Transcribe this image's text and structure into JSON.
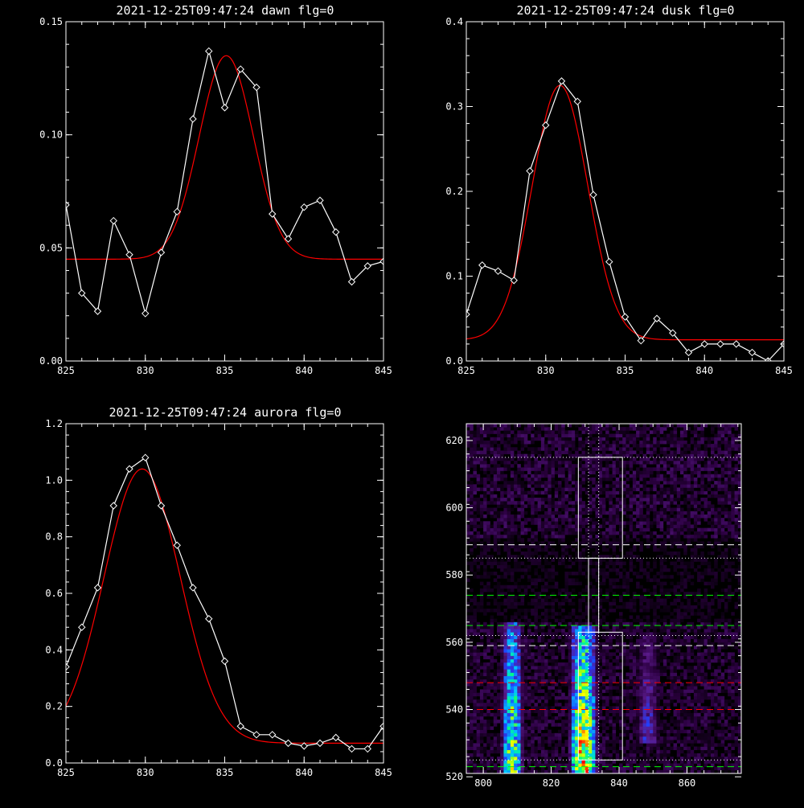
{
  "colors": {
    "background": "#000000",
    "axis": "#ffffff",
    "data_line": "#ffffff",
    "fit_line": "#ff0000",
    "guide_dotted": "#ffffff",
    "guide_dashed_white": "#ffffff",
    "guide_dashed_green": "#00ff00",
    "guide_dashed_red": "#ff0000",
    "heatmap_colormap": [
      "#000000",
      "#2b0040",
      "#5a1a8a",
      "#2040ff",
      "#00c8ff",
      "#00ff80",
      "#c8ff00",
      "#ffff00",
      "#ff0000"
    ]
  },
  "chart_data": [
    {
      "id": "dawn",
      "type": "line",
      "title": "2021-12-25T09:47:24 dawn flg=0",
      "xlim": [
        825,
        845
      ],
      "ylim": [
        0,
        0.15
      ],
      "xticks": [
        "825",
        "830",
        "835",
        "840",
        "845"
      ],
      "yticks": [
        "0.00",
        "0.05",
        "0.10",
        "0.15"
      ],
      "x": [
        825,
        826,
        827,
        828,
        829,
        830,
        831,
        832,
        833,
        834,
        835,
        836,
        837,
        838,
        839,
        840,
        841,
        842,
        843,
        844,
        845
      ],
      "series": [
        {
          "role": "data",
          "marker": "diamond",
          "values": [
            0.069,
            0.03,
            0.022,
            0.062,
            0.047,
            0.021,
            0.048,
            0.066,
            0.107,
            0.137,
            0.112,
            0.129,
            0.121,
            0.065,
            0.054,
            0.068,
            0.071,
            0.057,
            0.035,
            0.042,
            0.044
          ]
        },
        {
          "role": "fit",
          "gaussian": {
            "amplitude": 0.09,
            "center": 835.1,
            "sigma": 1.7,
            "offset": 0.045
          }
        }
      ]
    },
    {
      "id": "dusk",
      "type": "line",
      "title": "2021-12-25T09:47:24 dusk flg=0",
      "xlim": [
        825,
        845
      ],
      "ylim": [
        0,
        0.4
      ],
      "xticks": [
        "825",
        "830",
        "835",
        "840",
        "845"
      ],
      "yticks": [
        "0.0",
        "0.1",
        "0.2",
        "0.3",
        "0.4"
      ],
      "x": [
        825,
        826,
        827,
        828,
        829,
        830,
        831,
        832,
        833,
        834,
        835,
        836,
        837,
        838,
        839,
        840,
        841,
        842,
        843,
        844,
        845
      ],
      "series": [
        {
          "role": "data",
          "marker": "diamond",
          "values": [
            0.055,
            0.113,
            0.106,
            0.095,
            0.224,
            0.278,
            0.33,
            0.306,
            0.196,
            0.117,
            0.052,
            0.024,
            0.05,
            0.033,
            0.01,
            0.02,
            0.02,
            0.02,
            0.01,
            0.0,
            0.02
          ]
        },
        {
          "role": "fit",
          "gaussian": {
            "amplitude": 0.3,
            "center": 830.9,
            "sigma": 1.75,
            "offset": 0.025
          }
        }
      ]
    },
    {
      "id": "aurora",
      "type": "line",
      "title": "2021-12-25T09:47:24 aurora flg=0",
      "xlim": [
        825,
        845
      ],
      "ylim": [
        0,
        1.2
      ],
      "xticks": [
        "825",
        "830",
        "835",
        "840",
        "845"
      ],
      "yticks": [
        "0.0",
        "0.2",
        "0.4",
        "0.6",
        "0.8",
        "1.0",
        "1.2"
      ],
      "x": [
        825,
        826,
        827,
        828,
        829,
        830,
        831,
        832,
        833,
        834,
        835,
        836,
        837,
        838,
        839,
        840,
        841,
        842,
        843,
        844,
        845
      ],
      "series": [
        {
          "role": "data",
          "marker": "diamond",
          "values": [
            0.34,
            0.48,
            0.62,
            0.91,
            1.04,
            1.08,
            0.91,
            0.77,
            0.62,
            0.51,
            0.36,
            0.13,
            0.1,
            0.1,
            0.07,
            0.06,
            0.07,
            0.09,
            0.05,
            0.05,
            0.13
          ]
        },
        {
          "role": "fit",
          "gaussian": {
            "amplitude": 0.97,
            "center": 829.8,
            "sigma": 2.4,
            "offset": 0.07
          }
        }
      ]
    },
    {
      "id": "image",
      "type": "heatmap",
      "title": "",
      "xlim": [
        795,
        876
      ],
      "ylim": [
        521,
        625
      ],
      "xticks": [
        "800",
        "820",
        "840",
        "860"
      ],
      "yticks": [
        "520",
        "540",
        "560",
        "580",
        "600",
        "620"
      ],
      "bright_columns": [
        {
          "x_min": 805,
          "x_max": 811,
          "y_min": 521,
          "y_max": 565,
          "peak": 0.8
        },
        {
          "x_min": 825,
          "x_max": 833,
          "y_min": 521,
          "y_max": 564,
          "peak": 1.0
        },
        {
          "x_min": 845,
          "x_max": 851,
          "y_min": 530,
          "y_max": 562,
          "peak": 0.35
        }
      ],
      "boxes": [
        {
          "x": [
            828,
            841
          ],
          "y": [
            525,
            563
          ]
        },
        {
          "x": [
            831,
            834
          ],
          "y": [
            563,
            585
          ]
        },
        {
          "x": [
            828,
            841
          ],
          "y": [
            585,
            615
          ]
        }
      ],
      "vertical_dotted_x": [
        831,
        834
      ],
      "horizontal_lines": [
        {
          "y": 615,
          "style": "dotted",
          "color": "white"
        },
        {
          "y": 589,
          "style": "dashed",
          "color": "white"
        },
        {
          "y": 585,
          "style": "dotted",
          "color": "white"
        },
        {
          "y": 574,
          "style": "dashed",
          "color": "green"
        },
        {
          "y": 565,
          "style": "dashed",
          "color": "green"
        },
        {
          "y": 562,
          "style": "dotted",
          "color": "white"
        },
        {
          "y": 559,
          "style": "dashed",
          "color": "white"
        },
        {
          "y": 548,
          "style": "dashed",
          "color": "red"
        },
        {
          "y": 540,
          "style": "dashed",
          "color": "red"
        },
        {
          "y": 525,
          "style": "dotted",
          "color": "white"
        },
        {
          "y": 523,
          "style": "dashed",
          "color": "green"
        }
      ]
    }
  ]
}
